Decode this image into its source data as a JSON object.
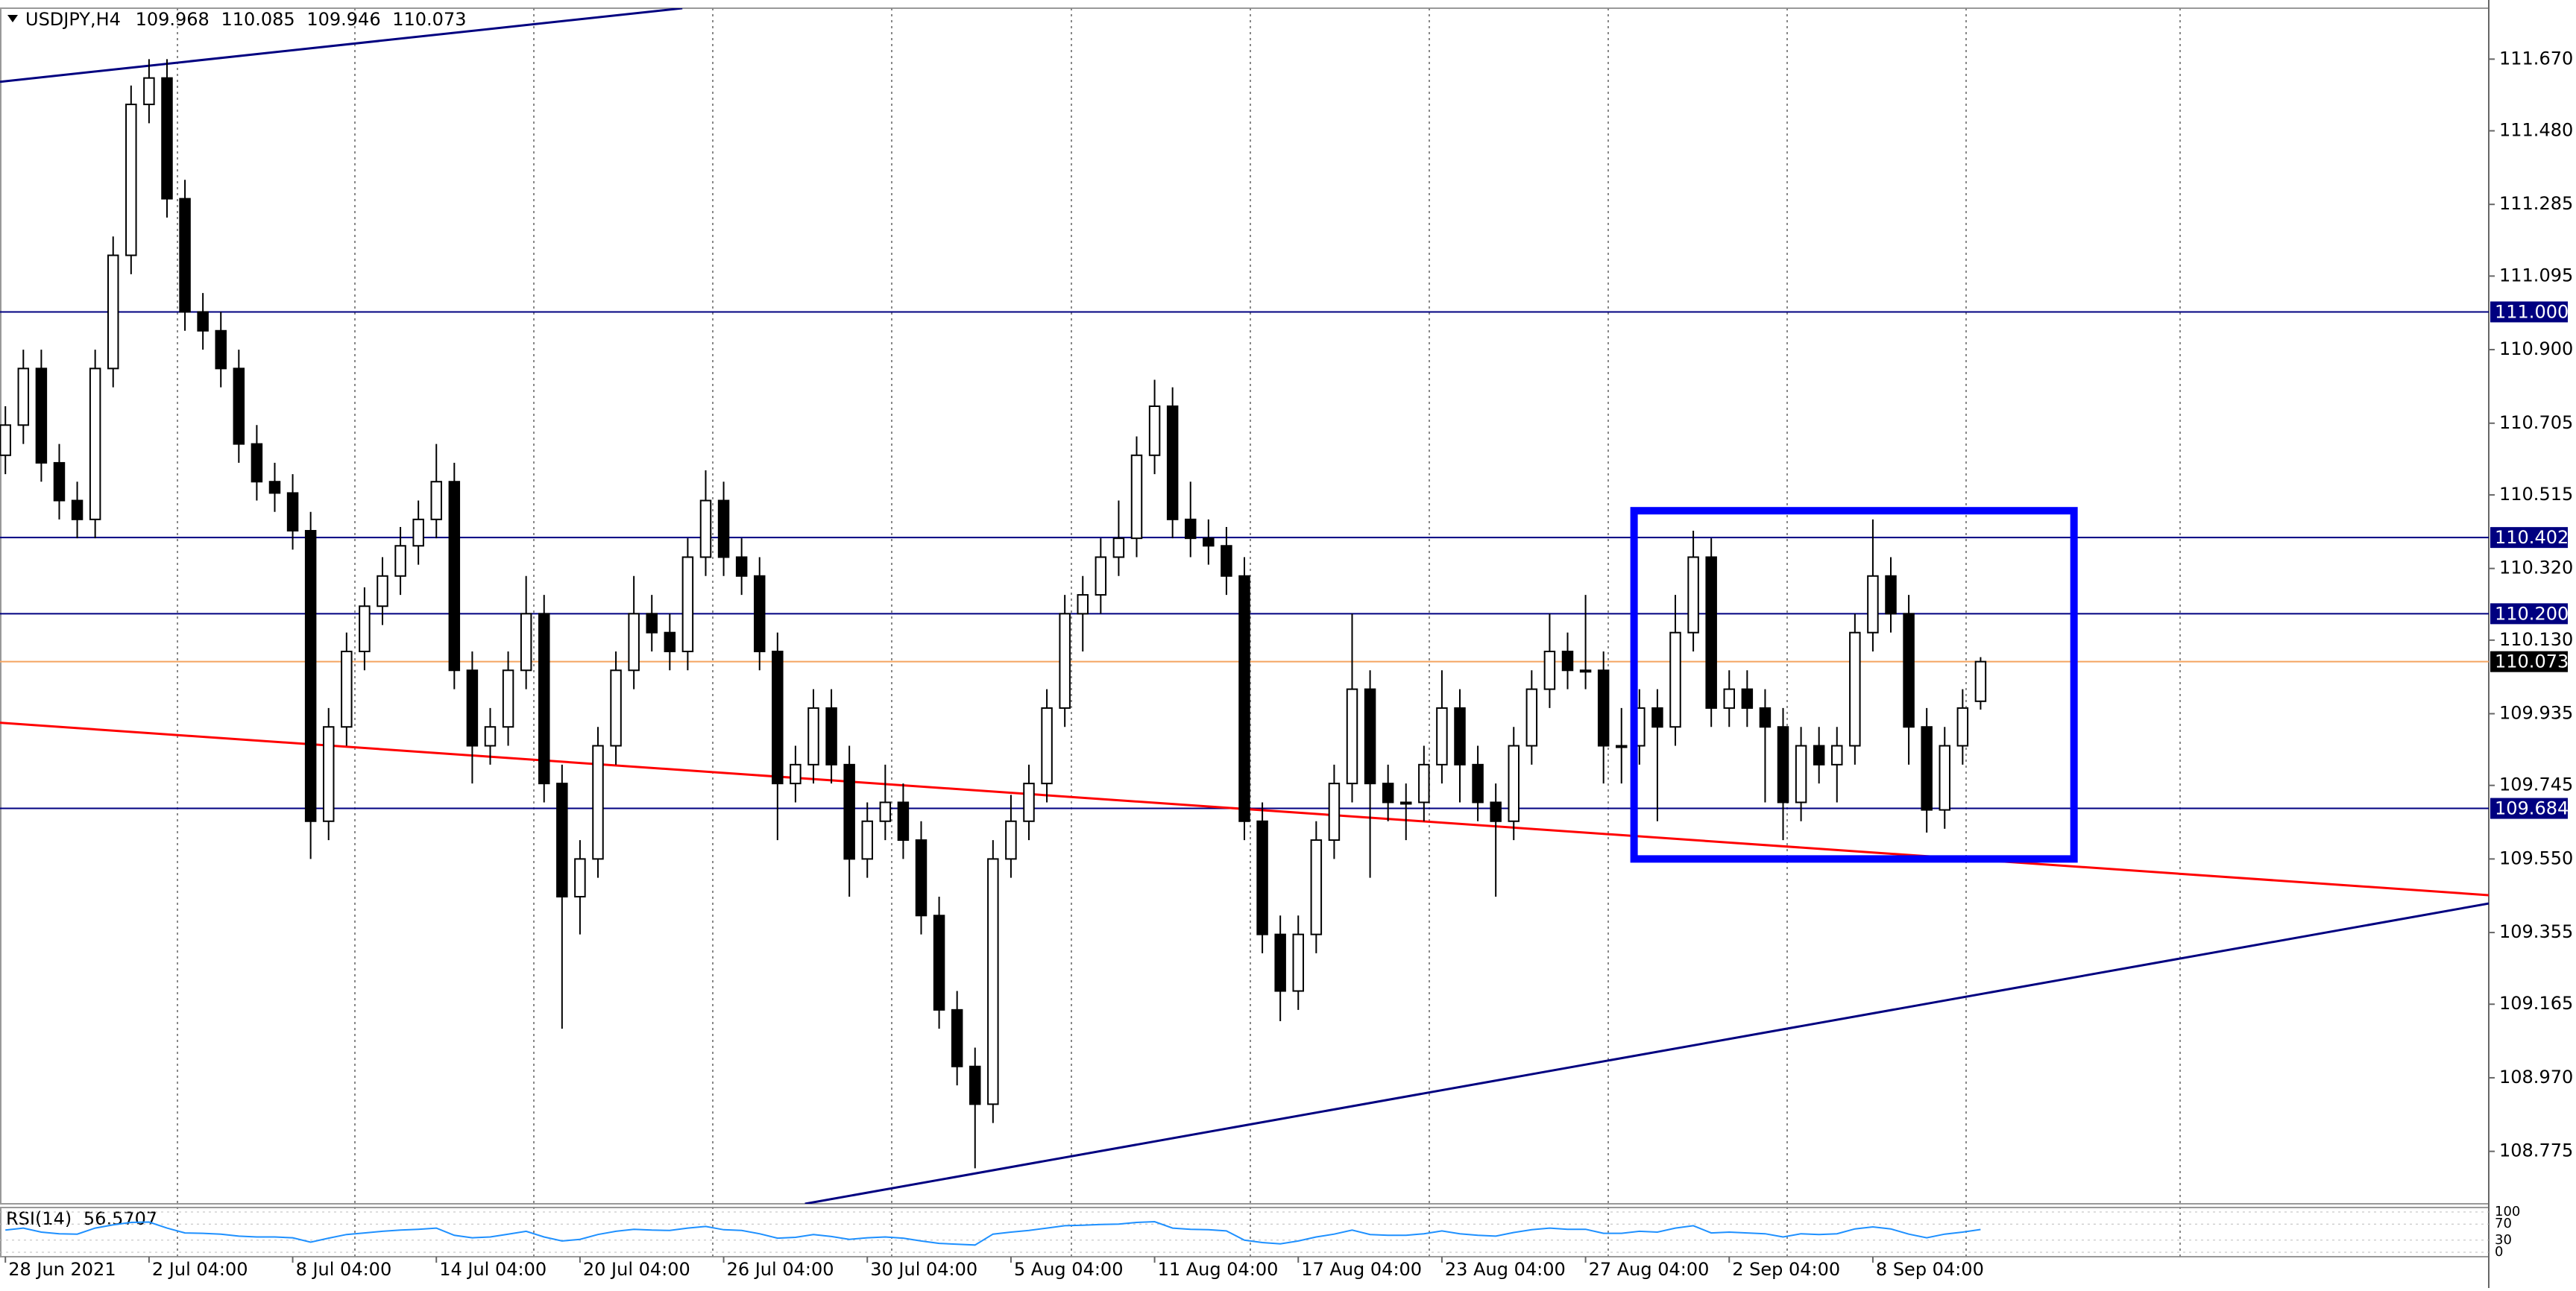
{
  "chart_data": {
    "type": "candlestick",
    "title": "USDJPY,H4",
    "open": [
      110.62,
      110.7,
      110.85,
      110.6,
      110.5,
      110.45,
      110.85,
      111.15,
      111.55,
      111.62,
      111.3,
      111.0,
      110.95,
      110.85,
      110.65,
      110.55,
      110.52,
      110.42,
      109.65,
      109.9,
      110.1,
      110.22,
      110.3,
      110.38,
      110.45,
      110.55,
      110.05,
      109.85,
      109.9,
      110.05,
      110.2,
      109.75,
      109.45,
      109.55,
      109.85,
      110.05,
      110.2,
      110.15,
      110.1,
      110.35,
      110.5,
      110.35,
      110.3,
      110.1,
      109.75,
      109.8,
      109.95,
      109.8,
      109.55,
      109.65,
      109.7,
      109.6,
      109.4,
      109.15,
      109.0,
      108.9,
      109.55,
      109.65,
      109.75,
      109.95,
      110.2,
      110.25,
      110.35,
      110.4,
      110.62,
      110.75,
      110.45,
      110.4,
      110.38,
      110.3,
      109.65,
      109.35,
      109.2,
      109.35,
      109.6,
      109.75,
      110.0,
      109.75,
      109.7,
      109.7,
      109.8,
      109.95,
      109.8,
      109.7,
      109.65,
      109.85,
      110.0,
      110.1,
      110.05,
      110.05,
      109.85,
      109.85,
      109.95,
      109.9,
      110.15,
      110.35,
      109.95,
      110.0,
      109.95,
      109.9,
      109.7,
      109.85,
      109.8,
      109.85,
      110.15,
      110.3,
      110.2,
      109.9,
      109.68,
      109.85,
      109.968
    ],
    "high": [
      110.75,
      110.9,
      110.9,
      110.65,
      110.55,
      110.9,
      111.2,
      111.6,
      111.67,
      111.67,
      111.35,
      111.05,
      111.0,
      110.9,
      110.7,
      110.6,
      110.57,
      110.47,
      109.95,
      110.15,
      110.27,
      110.35,
      110.43,
      110.5,
      110.65,
      110.6,
      110.1,
      109.95,
      110.1,
      110.3,
      110.25,
      109.8,
      109.6,
      109.9,
      110.1,
      110.3,
      110.25,
      110.2,
      110.4,
      110.58,
      110.55,
      110.4,
      110.35,
      110.15,
      109.85,
      110.0,
      110.0,
      109.85,
      109.7,
      109.8,
      109.75,
      109.65,
      109.45,
      109.2,
      109.05,
      109.6,
      109.72,
      109.8,
      110.0,
      110.25,
      110.3,
      110.4,
      110.5,
      110.67,
      110.82,
      110.8,
      110.55,
      110.45,
      110.43,
      110.35,
      109.7,
      109.4,
      109.4,
      109.65,
      109.8,
      110.2,
      110.05,
      109.8,
      109.75,
      109.85,
      110.05,
      110.0,
      109.85,
      109.75,
      109.9,
      110.05,
      110.2,
      110.15,
      110.25,
      110.1,
      109.95,
      110.0,
      110.0,
      110.25,
      110.42,
      110.4,
      110.05,
      110.05,
      110.0,
      109.95,
      109.9,
      109.9,
      109.9,
      110.2,
      110.45,
      110.35,
      110.25,
      109.95,
      109.9,
      110.0,
      110.085
    ],
    "low": [
      110.57,
      110.65,
      110.55,
      110.45,
      110.4,
      110.4,
      110.8,
      111.1,
      111.5,
      111.25,
      110.95,
      110.9,
      110.8,
      110.6,
      110.5,
      110.47,
      110.37,
      109.55,
      109.6,
      109.85,
      110.05,
      110.17,
      110.25,
      110.33,
      110.4,
      110.0,
      109.75,
      109.8,
      109.85,
      110.0,
      109.7,
      109.1,
      109.35,
      109.5,
      109.8,
      110.0,
      110.1,
      110.05,
      110.05,
      110.3,
      110.3,
      110.25,
      110.05,
      109.6,
      109.7,
      109.75,
      109.75,
      109.45,
      109.5,
      109.6,
      109.55,
      109.35,
      109.1,
      108.95,
      108.73,
      108.85,
      109.5,
      109.6,
      109.7,
      109.9,
      110.1,
      110.2,
      110.3,
      110.35,
      110.57,
      110.4,
      110.35,
      110.33,
      110.25,
      109.6,
      109.3,
      109.12,
      109.15,
      109.3,
      109.55,
      109.7,
      109.5,
      109.65,
      109.6,
      109.65,
      109.75,
      109.7,
      109.65,
      109.45,
      109.6,
      109.8,
      109.95,
      110.0,
      110.0,
      109.75,
      109.75,
      109.8,
      109.65,
      109.85,
      110.1,
      109.9,
      109.9,
      109.9,
      109.7,
      109.6,
      109.65,
      109.75,
      109.7,
      109.8,
      110.1,
      110.15,
      109.8,
      109.62,
      109.63,
      109.8,
      109.946
    ],
    "close": [
      110.7,
      110.85,
      110.6,
      110.5,
      110.45,
      110.85,
      111.15,
      111.55,
      111.62,
      111.3,
      111.0,
      110.95,
      110.85,
      110.65,
      110.55,
      110.52,
      110.42,
      109.65,
      109.9,
      110.1,
      110.22,
      110.3,
      110.38,
      110.45,
      110.55,
      110.05,
      109.85,
      109.9,
      110.05,
      110.2,
      109.75,
      109.45,
      109.55,
      109.85,
      110.05,
      110.2,
      110.15,
      110.1,
      110.35,
      110.5,
      110.35,
      110.3,
      110.1,
      109.75,
      109.8,
      109.95,
      109.8,
      109.55,
      109.65,
      109.7,
      109.6,
      109.4,
      109.15,
      109.0,
      108.9,
      109.55,
      109.65,
      109.75,
      109.95,
      110.2,
      110.25,
      110.35,
      110.4,
      110.62,
      110.75,
      110.45,
      110.4,
      110.38,
      110.3,
      109.65,
      109.35,
      109.2,
      109.35,
      109.6,
      109.75,
      110.0,
      109.75,
      109.7,
      109.7,
      109.8,
      109.95,
      109.8,
      109.7,
      109.65,
      109.85,
      110.0,
      110.1,
      110.05,
      110.05,
      109.85,
      109.85,
      109.95,
      109.9,
      110.15,
      110.35,
      109.95,
      110.0,
      109.95,
      109.9,
      109.7,
      109.85,
      109.8,
      109.85,
      110.15,
      110.3,
      110.2,
      109.9,
      109.68,
      109.85,
      109.95,
      110.073
    ],
    "xlim": [
      -0.3,
      138.3
    ],
    "xticks": [
      {
        "value": 0,
        "label": "28 Jun 2021"
      },
      {
        "value": 8,
        "label": "2 Jul 04:00"
      },
      {
        "value": 16,
        "label": "8 Jul 04:00"
      },
      {
        "value": 24,
        "label": "14 Jul 04:00"
      },
      {
        "value": 32,
        "label": "20 Jul 04:00"
      },
      {
        "value": 40,
        "label": "26 Jul 04:00"
      },
      {
        "value": 48,
        "label": "30 Jul 04:00"
      },
      {
        "value": 56,
        "label": "5 Aug 04:00"
      },
      {
        "value": 64,
        "label": "11 Aug 04:00"
      },
      {
        "value": 72,
        "label": "17 Aug 04:00"
      },
      {
        "value": 80,
        "label": "23 Aug 04:00"
      },
      {
        "value": 88,
        "label": "27 Aug 04:00"
      },
      {
        "value": 96,
        "label": "2 Sep 04:00"
      },
      {
        "value": 104,
        "label": "8 Sep 04:00"
      }
    ],
    "ylim": [
      108.636,
      111.805
    ],
    "yticks": [
      {
        "value": 111.67,
        "label": "111.670"
      },
      {
        "value": 111.48,
        "label": "111.480"
      },
      111.285,
      111.095,
      {
        "value": 110.9,
        "label": "110.900"
      },
      110.705,
      110.515,
      {
        "value": 110.32,
        "label": "110.320"
      },
      {
        "value": 110.13,
        "label": "110.130"
      },
      109.935,
      109.745,
      {
        "value": 109.55,
        "label": "109.550"
      },
      109.355,
      109.165,
      {
        "value": 108.97,
        "label": "108.970"
      },
      108.775
    ],
    "levels": [
      {
        "value": 111.0,
        "label": "111.000"
      },
      {
        "value": 110.402,
        "label": "110.402"
      },
      {
        "value": 110.2,
        "label": "110.200"
      },
      {
        "value": 109.684,
        "label": "109.684"
      }
    ],
    "level_color": "#000080",
    "current_color": "#f4a460",
    "trendlines": [
      {
        "color": "#000080",
        "points": [
          [
            -0.3,
            111.61
          ],
          [
            37.7,
            111.805
          ]
        ]
      },
      {
        "color": "#ff0000",
        "points": [
          [
            -0.3,
            109.911
          ],
          [
            138.3,
            109.454
          ]
        ]
      },
      {
        "color": "#000080",
        "points": [
          [
            44.53,
            108.636
          ],
          [
            138.3,
            109.432
          ]
        ]
      }
    ],
    "box": {
      "color": "#0000ff",
      "x": [
        90.7,
        115.2
      ],
      "y": [
        109.55,
        110.473
      ]
    },
    "rsi": {
      "name": "RSI(14)",
      "color": "#1e90ff",
      "ylim": [
        0,
        100
      ],
      "yticks": [
        100,
        70,
        30,
        0
      ],
      "values": [
        55,
        60,
        50,
        46,
        45,
        60,
        68,
        74,
        75,
        60,
        48,
        47,
        45,
        40,
        38,
        38,
        36,
        25,
        35,
        44,
        48,
        52,
        55,
        57,
        60,
        42,
        36,
        38,
        45,
        52,
        38,
        28,
        32,
        44,
        52,
        57,
        55,
        54,
        60,
        64,
        56,
        54,
        46,
        35,
        37,
        44,
        39,
        32,
        36,
        38,
        35,
        28,
        22,
        20,
        18,
        45,
        50,
        54,
        60,
        66,
        67,
        69,
        70,
        74,
        76,
        60,
        57,
        56,
        53,
        30,
        24,
        21,
        28,
        38,
        45,
        55,
        44,
        42,
        42,
        46,
        53,
        46,
        42,
        40,
        49,
        56,
        60,
        57,
        57,
        47,
        47,
        52,
        50,
        60,
        66,
        48,
        50,
        48,
        46,
        38,
        46,
        44,
        46,
        58,
        63,
        58,
        45,
        36,
        45,
        50,
        56.5707
      ]
    }
  }
}
